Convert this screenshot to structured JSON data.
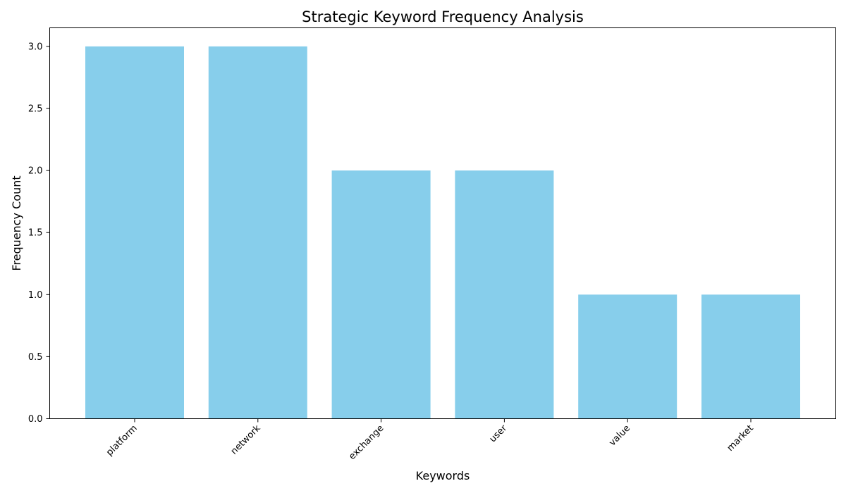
{
  "chart_data": {
    "type": "bar",
    "title": "Strategic Keyword Frequency Analysis",
    "xlabel": "Keywords",
    "ylabel": "Frequency Count",
    "categories": [
      "platform",
      "network",
      "exchange",
      "user",
      "value",
      "market"
    ],
    "values": [
      3,
      3,
      2,
      2,
      1,
      1
    ],
    "ylim": [
      0,
      3.15
    ],
    "yticks": [
      "0.0",
      "0.5",
      "1.0",
      "1.5",
      "2.0",
      "2.5",
      "3.0"
    ],
    "bar_color": "#87CEEB",
    "grid": false,
    "legend": "none"
  }
}
